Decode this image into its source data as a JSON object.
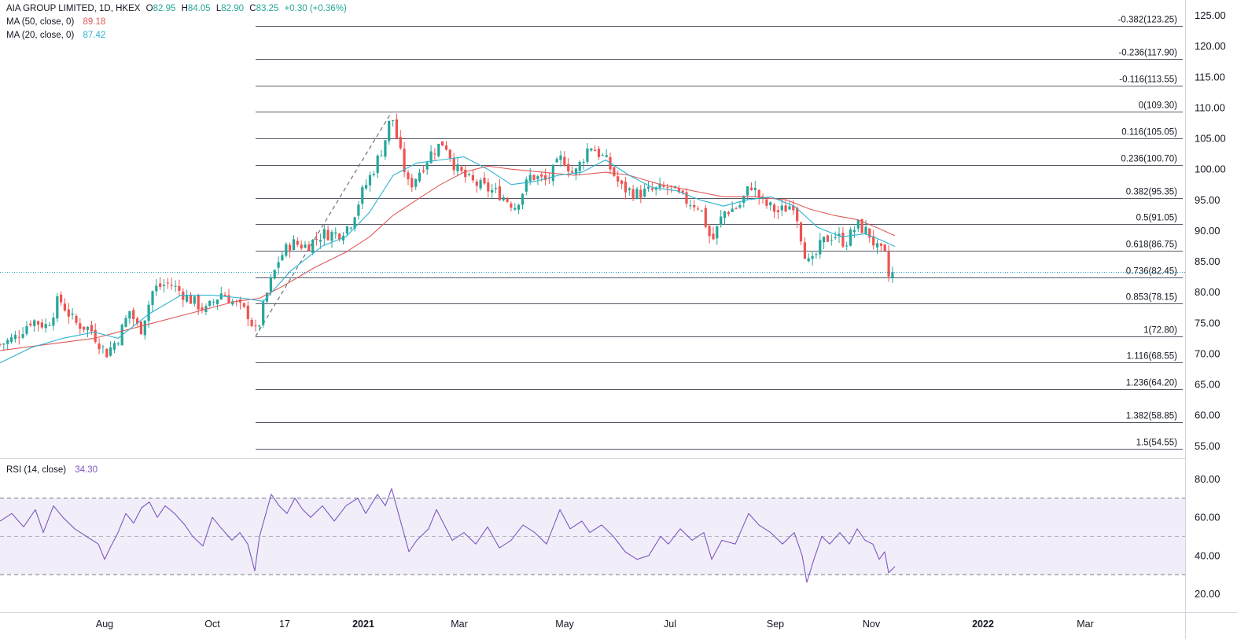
{
  "colors": {
    "up": "#26a69a",
    "down": "#ef5350",
    "ma50": "#e05a5a",
    "ma20": "#2bb3d1",
    "rsi": "#7e57c2",
    "rsi_band": "#7e57c2",
    "fib_line": "#555a66",
    "last_price_line": "#2a9ebd",
    "trend_line": "#6b6f7a"
  },
  "legend": {
    "symbol": "AIA GROUP LIMITED, 1D, HKEX",
    "o_label": "O",
    "o_value": "82.95",
    "h_label": "H",
    "h_value": "84.05",
    "l_label": "L",
    "l_value": "82.90",
    "c_label": "C",
    "c_value": "83.25",
    "change": "+0.30 (+0.36%)",
    "ma50_label": "MA (50, close, 0)",
    "ma50_value": "89.18",
    "ma20_label": "MA (20, close, 0)",
    "ma20_value": "87.42",
    "rsi_label": "RSI (14, close)",
    "rsi_value": "34.30"
  },
  "chart_data": [
    {
      "type": "candlestick",
      "title": "AIA GROUP LIMITED, 1D, HKEX",
      "x_tick_labels": [
        "Aug",
        "Oct",
        "17",
        "2021",
        "Mar",
        "May",
        "Jul",
        "Sep",
        "Nov",
        "2022",
        "Mar"
      ],
      "x_tick_bold": [
        false,
        false,
        false,
        true,
        false,
        false,
        false,
        false,
        false,
        true,
        false
      ],
      "y_tick_labels": [
        "125.00",
        "120.00",
        "115.00",
        "110.00",
        "105.00",
        "100.00",
        "95.00",
        "90.00",
        "85.00",
        "80.00",
        "75.00",
        "70.00",
        "65.00",
        "60.00",
        "55.00"
      ],
      "ylim": [
        53.0,
        127.5
      ],
      "last_close": 83.25,
      "fib_levels": [
        {
          "ratio": "-0.382",
          "price": 123.25,
          "label": "-0.382(123.25)"
        },
        {
          "ratio": "-0.236",
          "price": 117.9,
          "label": "-0.236(117.90)"
        },
        {
          "ratio": "-0.116",
          "price": 113.55,
          "label": "-0.116(113.55)"
        },
        {
          "ratio": "0",
          "price": 109.3,
          "label": "0(109.30)"
        },
        {
          "ratio": "0.116",
          "price": 105.05,
          "label": "0.116(105.05)"
        },
        {
          "ratio": "0.236",
          "price": 100.7,
          "label": "0.236(100.70)"
        },
        {
          "ratio": "0.382",
          "price": 95.35,
          "label": "0.382(95.35)"
        },
        {
          "ratio": "0.5",
          "price": 91.05,
          "label": "0.5(91.05)"
        },
        {
          "ratio": "0.618",
          "price": 86.75,
          "label": "0.618(86.75)"
        },
        {
          "ratio": "0.736",
          "price": 82.45,
          "label": "0.736(82.45)"
        },
        {
          "ratio": "0.853",
          "price": 78.15,
          "label": "0.853(78.15)"
        },
        {
          "ratio": "1",
          "price": 72.8,
          "label": "1(72.80)"
        },
        {
          "ratio": "1.116",
          "price": 68.55,
          "label": "1.116(68.55)"
        },
        {
          "ratio": "1.236",
          "price": 64.2,
          "label": "1.236(64.20)"
        },
        {
          "ratio": "1.382",
          "price": 58.85,
          "label": "1.382(58.85)"
        },
        {
          "ratio": "1.5",
          "price": 54.55,
          "label": "1.5(54.55)"
        }
      ],
      "trend_line": {
        "from_price": 72.8,
        "to_price": 109.3
      },
      "price_path": [
        [
          0,
          71.5
        ],
        [
          18,
          72.5
        ],
        [
          40,
          75.5
        ],
        [
          60,
          74.5
        ],
        [
          75,
          79.0
        ],
        [
          95,
          75.0
        ],
        [
          115,
          74.0
        ],
        [
          135,
          70.0
        ],
        [
          150,
          72.5
        ],
        [
          165,
          77.0
        ],
        [
          178,
          73.5
        ],
        [
          195,
          80.5
        ],
        [
          215,
          81.5
        ],
        [
          240,
          79.0
        ],
        [
          262,
          77.0
        ],
        [
          282,
          80.0
        ],
        [
          300,
          78.0
        ],
        [
          315,
          76.5
        ],
        [
          326,
          73.2
        ],
        [
          340,
          80.0
        ],
        [
          355,
          85.5
        ],
        [
          370,
          88.0
        ],
        [
          390,
          87.5
        ],
        [
          410,
          89.5
        ],
        [
          430,
          89.5
        ],
        [
          445,
          91.0
        ],
        [
          460,
          96.0
        ],
        [
          475,
          100.0
        ],
        [
          488,
          104.0
        ],
        [
          498,
          109.0
        ],
        [
          508,
          103.0
        ],
        [
          520,
          97.0
        ],
        [
          535,
          100.0
        ],
        [
          550,
          103.0
        ],
        [
          565,
          104.5
        ],
        [
          580,
          100.0
        ],
        [
          598,
          98.0
        ],
        [
          615,
          97.0
        ],
        [
          635,
          96.0
        ],
        [
          655,
          94.0
        ],
        [
          675,
          99.0
        ],
        [
          695,
          98.0
        ],
        [
          715,
          102.0
        ],
        [
          730,
          99.0
        ],
        [
          750,
          104.0
        ],
        [
          770,
          101.5
        ],
        [
          790,
          97.0
        ],
        [
          810,
          96.0
        ],
        [
          830,
          96.5
        ],
        [
          850,
          97.0
        ],
        [
          870,
          95.0
        ],
        [
          890,
          94.0
        ],
        [
          905,
          88.0
        ],
        [
          920,
          93.0
        ],
        [
          940,
          94.0
        ],
        [
          955,
          97.5
        ],
        [
          970,
          94.5
        ],
        [
          990,
          93.0
        ],
        [
          1010,
          94.5
        ],
        [
          1022,
          87.0
        ],
        [
          1030,
          84.0
        ],
        [
          1045,
          88.0
        ],
        [
          1060,
          89.5
        ],
        [
          1075,
          88.0
        ],
        [
          1090,
          91.0
        ],
        [
          1105,
          89.5
        ],
        [
          1115,
          87.0
        ],
        [
          1125,
          86.0
        ],
        [
          1130,
          82.5
        ],
        [
          1138,
          83.25
        ]
      ],
      "ma50_path": [
        [
          0,
          70.5
        ],
        [
          60,
          71.5
        ],
        [
          120,
          72.5
        ],
        [
          180,
          74.5
        ],
        [
          240,
          76.5
        ],
        [
          300,
          78.5
        ],
        [
          330,
          79.0
        ],
        [
          360,
          81.0
        ],
        [
          400,
          84.0
        ],
        [
          440,
          86.5
        ],
        [
          470,
          89.0
        ],
        [
          500,
          92.5
        ],
        [
          530,
          95.0
        ],
        [
          560,
          97.5
        ],
        [
          590,
          99.5
        ],
        [
          620,
          100.5
        ],
        [
          650,
          100.0
        ],
        [
          690,
          99.5
        ],
        [
          730,
          99.0
        ],
        [
          770,
          99.5
        ],
        [
          800,
          99.0
        ],
        [
          840,
          97.5
        ],
        [
          880,
          96.5
        ],
        [
          920,
          95.5
        ],
        [
          960,
          95.5
        ],
        [
          1000,
          95.0
        ],
        [
          1030,
          93.5
        ],
        [
          1060,
          92.5
        ],
        [
          1090,
          91.8
        ],
        [
          1115,
          90.5
        ],
        [
          1138,
          89.18
        ]
      ],
      "ma20_path": [
        [
          0,
          68.5
        ],
        [
          40,
          71.0
        ],
        [
          80,
          72.5
        ],
        [
          120,
          73.5
        ],
        [
          150,
          72.5
        ],
        [
          190,
          76.5
        ],
        [
          230,
          79.5
        ],
        [
          270,
          79.5
        ],
        [
          310,
          79.0
        ],
        [
          335,
          78.5
        ],
        [
          370,
          83.5
        ],
        [
          410,
          87.5
        ],
        [
          440,
          89.0
        ],
        [
          470,
          93.0
        ],
        [
          500,
          99.0
        ],
        [
          530,
          101.0
        ],
        [
          560,
          101.5
        ],
        [
          590,
          102.0
        ],
        [
          620,
          100.0
        ],
        [
          650,
          97.5
        ],
        [
          680,
          98.0
        ],
        [
          710,
          99.0
        ],
        [
          740,
          99.5
        ],
        [
          770,
          101.5
        ],
        [
          800,
          99.0
        ],
        [
          830,
          97.0
        ],
        [
          860,
          96.5
        ],
        [
          890,
          95.0
        ],
        [
          920,
          94.0
        ],
        [
          950,
          95.0
        ],
        [
          980,
          95.5
        ],
        [
          1010,
          94.0
        ],
        [
          1040,
          90.5
        ],
        [
          1070,
          89.0
        ],
        [
          1100,
          89.5
        ],
        [
          1120,
          88.5
        ],
        [
          1138,
          87.42
        ]
      ]
    },
    {
      "type": "line",
      "title": "RSI (14, close)",
      "y_tick_labels": [
        "80.00",
        "60.00",
        "40.00",
        "20.00"
      ],
      "ylim": [
        12,
        88
      ],
      "upper_band": 70,
      "middle_band": 50,
      "lower_band": 30,
      "last_value": 34.3,
      "rsi_path": [
        [
          0,
          58
        ],
        [
          15,
          62
        ],
        [
          30,
          55
        ],
        [
          45,
          64
        ],
        [
          55,
          52
        ],
        [
          68,
          66
        ],
        [
          80,
          60
        ],
        [
          95,
          54
        ],
        [
          110,
          50
        ],
        [
          125,
          46
        ],
        [
          133,
          38
        ],
        [
          140,
          44
        ],
        [
          150,
          52
        ],
        [
          160,
          62
        ],
        [
          170,
          57
        ],
        [
          180,
          65
        ],
        [
          190,
          68
        ],
        [
          200,
          60
        ],
        [
          210,
          66
        ],
        [
          222,
          62
        ],
        [
          235,
          56
        ],
        [
          245,
          50
        ],
        [
          258,
          45
        ],
        [
          270,
          60
        ],
        [
          282,
          54
        ],
        [
          295,
          48
        ],
        [
          305,
          52
        ],
        [
          315,
          46
        ],
        [
          324,
          32
        ],
        [
          330,
          50
        ],
        [
          345,
          72
        ],
        [
          355,
          66
        ],
        [
          365,
          62
        ],
        [
          375,
          70
        ],
        [
          385,
          64
        ],
        [
          395,
          60
        ],
        [
          410,
          66
        ],
        [
          425,
          58
        ],
        [
          440,
          66
        ],
        [
          455,
          70
        ],
        [
          465,
          62
        ],
        [
          480,
          72
        ],
        [
          490,
          66
        ],
        [
          498,
          75
        ],
        [
          508,
          60
        ],
        [
          520,
          42
        ],
        [
          530,
          48
        ],
        [
          545,
          54
        ],
        [
          555,
          64
        ],
        [
          565,
          56
        ],
        [
          575,
          48
        ],
        [
          590,
          52
        ],
        [
          605,
          46
        ],
        [
          620,
          55
        ],
        [
          635,
          44
        ],
        [
          650,
          48
        ],
        [
          665,
          56
        ],
        [
          680,
          52
        ],
        [
          695,
          46
        ],
        [
          712,
          64
        ],
        [
          725,
          54
        ],
        [
          740,
          58
        ],
        [
          750,
          52
        ],
        [
          765,
          56
        ],
        [
          780,
          50
        ],
        [
          795,
          42
        ],
        [
          810,
          38
        ],
        [
          825,
          40
        ],
        [
          840,
          50
        ],
        [
          850,
          46
        ],
        [
          865,
          54
        ],
        [
          880,
          48
        ],
        [
          895,
          52
        ],
        [
          905,
          38
        ],
        [
          918,
          48
        ],
        [
          935,
          46
        ],
        [
          952,
          62
        ],
        [
          965,
          56
        ],
        [
          980,
          52
        ],
        [
          995,
          46
        ],
        [
          1010,
          52
        ],
        [
          1020,
          40
        ],
        [
          1026,
          26
        ],
        [
          1035,
          38
        ],
        [
          1045,
          50
        ],
        [
          1055,
          46
        ],
        [
          1068,
          52
        ],
        [
          1080,
          46
        ],
        [
          1090,
          54
        ],
        [
          1100,
          48
        ],
        [
          1110,
          46
        ],
        [
          1118,
          38
        ],
        [
          1125,
          42
        ],
        [
          1130,
          31
        ],
        [
          1138,
          34.3
        ]
      ]
    }
  ]
}
